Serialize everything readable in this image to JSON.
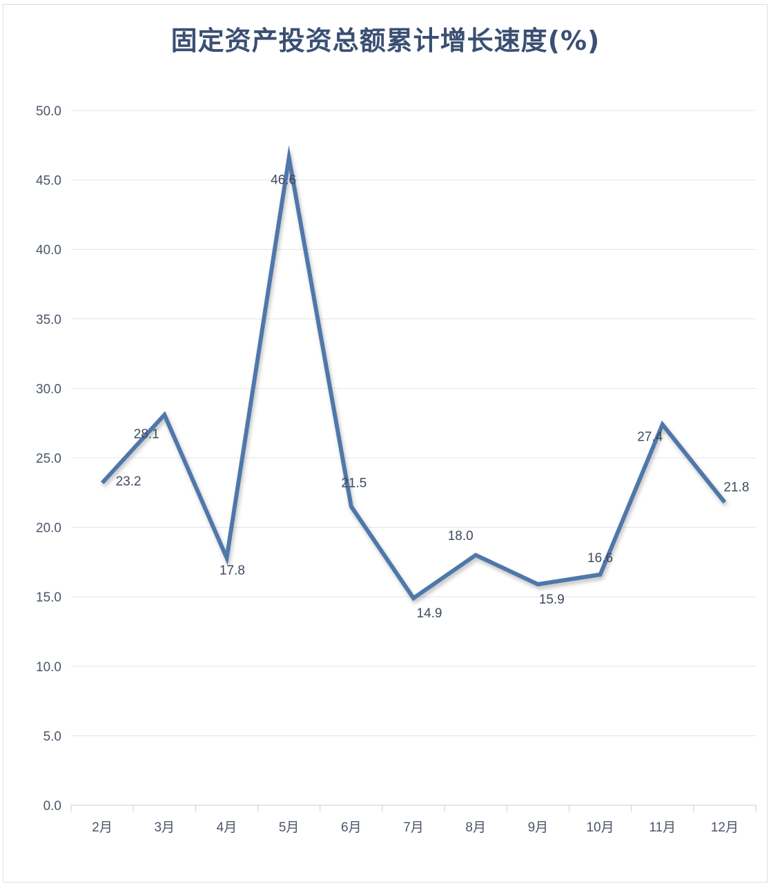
{
  "chart_data": {
    "type": "line",
    "title": "固定资产投资总额累计增长速度(%)",
    "categories": [
      "2月",
      "3月",
      "4月",
      "5月",
      "6月",
      "7月",
      "8月",
      "9月",
      "10月",
      "11月",
      "12月"
    ],
    "series": [
      {
        "values": [
          23.2,
          28.1,
          17.8,
          46.6,
          21.5,
          14.9,
          18.0,
          15.9,
          16.6,
          27.4,
          21.8
        ],
        "labels": [
          "23.2",
          "28.1",
          "17.8",
          "46.6",
          "21.5",
          "14.9",
          "18.0",
          "15.9",
          "16.6",
          "27.4",
          "21.8"
        ]
      }
    ],
    "yticks": [
      "0.0",
      "5.0",
      "10.0",
      "15.0",
      "20.0",
      "25.0",
      "30.0",
      "35.0",
      "40.0",
      "45.0",
      "50.0"
    ],
    "ylim": [
      0,
      50
    ],
    "grid": true,
    "legend": "none",
    "line_color": "#4f77aa"
  }
}
